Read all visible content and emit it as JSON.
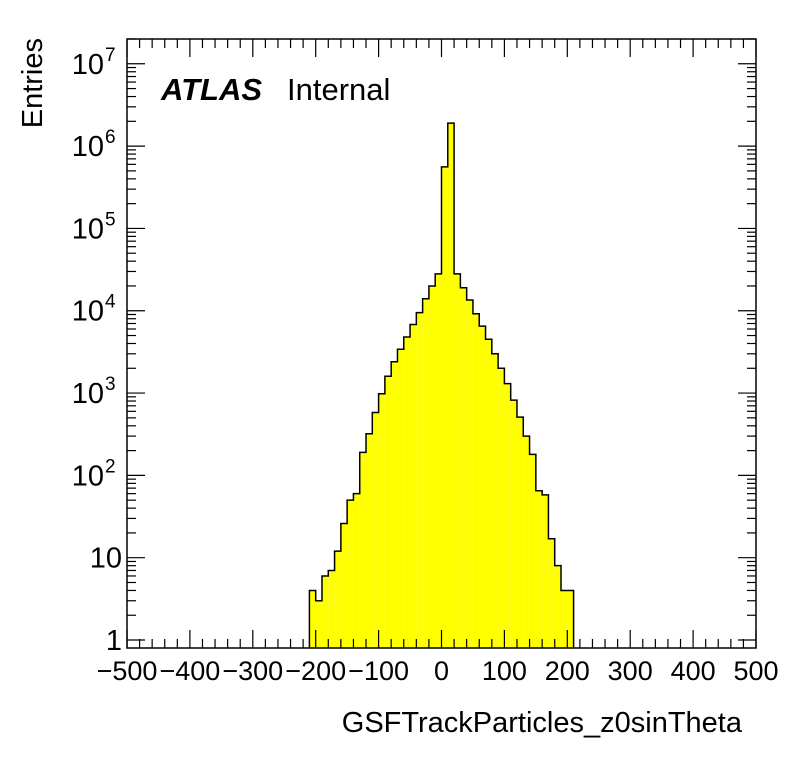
{
  "chart_data": {
    "type": "bar",
    "yscale": "log",
    "xlabel": "GSFTrackParticles_z0sinTheta",
    "ylabel": "Entries",
    "xlim": [
      -500,
      500
    ],
    "ylim": [
      0.8,
      20000000
    ],
    "x_ticks": [
      "−500",
      "−400",
      "−300",
      "−200",
      "−100",
      "0",
      "100",
      "200",
      "300",
      "400",
      "500"
    ],
    "y_ticks": [
      {
        "value": 1,
        "base": "1",
        "exp": ""
      },
      {
        "value": 10,
        "base": "10",
        "exp": ""
      },
      {
        "value": 100,
        "base": "10",
        "exp": "2"
      },
      {
        "value": 1000,
        "base": "10",
        "exp": "3"
      },
      {
        "value": 10000,
        "base": "10",
        "exp": "4"
      },
      {
        "value": 100000,
        "base": "10",
        "exp": "5"
      },
      {
        "value": 1000000,
        "base": "10",
        "exp": "6"
      },
      {
        "value": 10000000,
        "base": "10",
        "exp": "7"
      }
    ],
    "bin_start": -210,
    "bin_width": 10,
    "values": [
      4,
      3,
      6,
      7,
      12,
      26,
      50,
      60,
      190,
      320,
      580,
      980,
      1600,
      2400,
      3400,
      4800,
      6800,
      9500,
      14000,
      20000,
      28000,
      560000,
      1900000,
      28000,
      19000,
      13500,
      9200,
      6500,
      4500,
      3000,
      2000,
      1300,
      820,
      510,
      300,
      180,
      65,
      58,
      17,
      8,
      4,
      4
    ],
    "fill_color": "#ffff00",
    "line_color": "#000000",
    "grid": false,
    "legend": "none",
    "annotation": {
      "bold": "ATLAS",
      "normal": "Internal"
    }
  }
}
